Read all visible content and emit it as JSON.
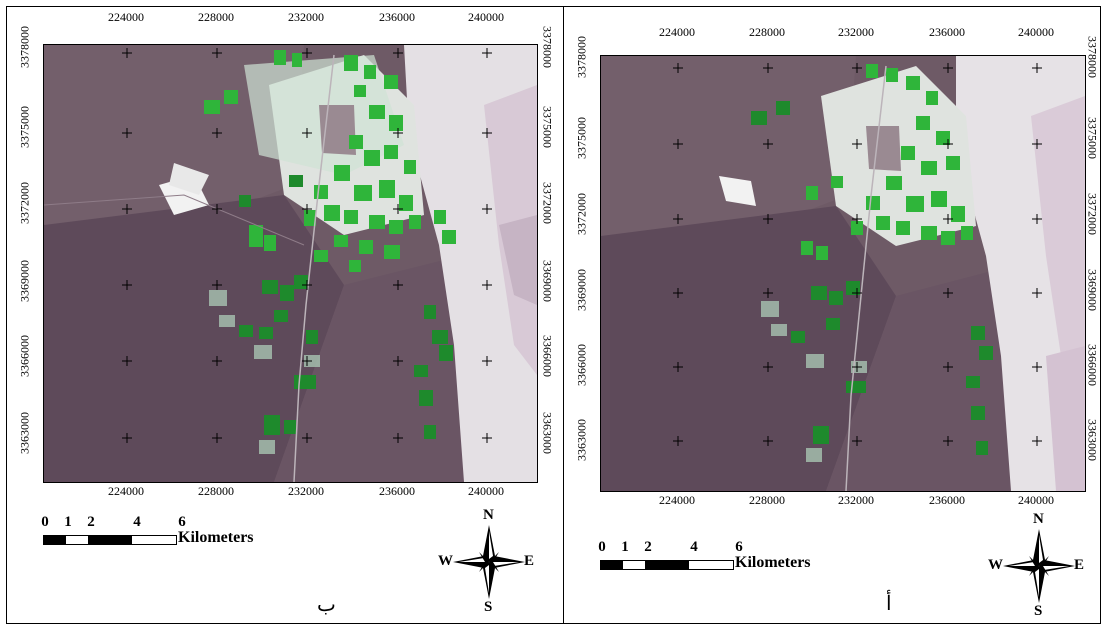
{
  "panels": [
    {
      "id": "b",
      "letter": "ب",
      "x_ticks": [
        "224000",
        "228000",
        "232000",
        "236000",
        "240000"
      ],
      "y_ticks": [
        "3378000",
        "3375000",
        "3372000",
        "3369000",
        "3366000",
        "3363000"
      ],
      "scale": {
        "numbers": [
          "0",
          "1",
          "2",
          "4",
          "6"
        ],
        "unit": "Kilometers"
      },
      "compass": {
        "n": "N",
        "s": "S",
        "e": "E",
        "w": "W"
      }
    },
    {
      "id": "a",
      "letter": "أ",
      "x_ticks": [
        "224000",
        "228000",
        "232000",
        "236000",
        "240000"
      ],
      "y_ticks": [
        "3378000",
        "3375000",
        "3372000",
        "3369000",
        "3366000",
        "3363000"
      ],
      "scale": {
        "numbers": [
          "0",
          "1",
          "2",
          "4",
          "6"
        ],
        "unit": "Kilometers"
      },
      "compass": {
        "n": "N",
        "s": "S",
        "e": "E",
        "w": "W"
      }
    }
  ],
  "colors": {
    "terrain": "#6e5a66",
    "terrain_dark": "#5a4656",
    "salt_flat": "#e6e3e6",
    "vegetation": "#2fb53a",
    "vegetation_dark": "#1c7a2a",
    "pale_field": "#a8c4b2"
  }
}
